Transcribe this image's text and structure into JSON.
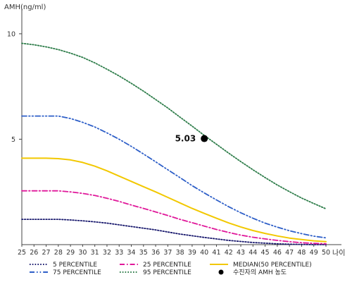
{
  "chart_data": {
    "type": "line",
    "ylabel": "AMH(ng/ml)",
    "xlabel": "나이",
    "x": [
      25,
      26,
      27,
      28,
      29,
      30,
      31,
      32,
      33,
      34,
      35,
      36,
      37,
      38,
      39,
      40,
      41,
      42,
      43,
      44,
      45,
      46,
      47,
      48,
      49,
      50
    ],
    "x_tick_labels": [
      "25",
      "26",
      "27",
      "28",
      "29",
      "30",
      "31",
      "32",
      "33",
      "34",
      "35",
      "36",
      "37",
      "38",
      "39",
      "40",
      "41",
      "42",
      "43",
      "44",
      "45",
      "46",
      "47",
      "48",
      "49",
      "50"
    ],
    "y_ticks": [
      5,
      10
    ],
    "y_tick_labels": [
      "5",
      "10"
    ],
    "xlim": [
      25,
      50
    ],
    "ylim": [
      0,
      11
    ],
    "grid": false,
    "legend_position": "bottom",
    "series": [
      {
        "name": "5 PERCENTILE",
        "color": "#1a1a6e",
        "dash": "dotted",
        "values": [
          1.2,
          1.2,
          1.2,
          1.2,
          1.17,
          1.13,
          1.08,
          1.02,
          0.94,
          0.86,
          0.78,
          0.7,
          0.6,
          0.5,
          0.42,
          0.34,
          0.27,
          0.2,
          0.15,
          0.1,
          0.07,
          0.04,
          0.02,
          0.01,
          0.0,
          0.0
        ]
      },
      {
        "name": "25 PERCENTILE",
        "color": "#e0189a",
        "dash": "dashdot",
        "values": [
          2.55,
          2.55,
          2.55,
          2.55,
          2.5,
          2.43,
          2.33,
          2.2,
          2.05,
          1.88,
          1.72,
          1.55,
          1.38,
          1.2,
          1.04,
          0.88,
          0.72,
          0.58,
          0.45,
          0.35,
          0.27,
          0.2,
          0.14,
          0.09,
          0.06,
          0.04
        ]
      },
      {
        "name": "MEDIAN(50 PERCENTILE)",
        "color": "#f2c800",
        "dash": "solid",
        "values": [
          4.1,
          4.1,
          4.1,
          4.08,
          4.02,
          3.9,
          3.72,
          3.5,
          3.25,
          3.0,
          2.75,
          2.5,
          2.24,
          1.98,
          1.72,
          1.48,
          1.25,
          1.03,
          0.84,
          0.67,
          0.53,
          0.41,
          0.31,
          0.24,
          0.18,
          0.14
        ]
      },
      {
        "name": "75 PERCENTILE",
        "color": "#2e5fc8",
        "dash": "dashdotdot",
        "values": [
          6.1,
          6.1,
          6.1,
          6.1,
          5.98,
          5.8,
          5.58,
          5.3,
          5.0,
          4.66,
          4.3,
          3.93,
          3.55,
          3.18,
          2.8,
          2.45,
          2.12,
          1.8,
          1.51,
          1.25,
          1.02,
          0.83,
          0.66,
          0.52,
          0.4,
          0.32
        ]
      },
      {
        "name": "95 PERCENTILE",
        "color": "#2e7d4a",
        "dash": "dotted",
        "values": [
          9.55,
          9.48,
          9.38,
          9.25,
          9.08,
          8.88,
          8.62,
          8.32,
          8.0,
          7.65,
          7.28,
          6.88,
          6.48,
          6.05,
          5.62,
          5.18,
          4.76,
          4.34,
          3.94,
          3.55,
          3.18,
          2.83,
          2.51,
          2.21,
          1.95,
          1.7
        ]
      }
    ],
    "annotation": {
      "label": "수진자의 AMH 농도",
      "x": 40,
      "y": 5.03,
      "value_text": "5.03",
      "color": "#000000"
    }
  }
}
